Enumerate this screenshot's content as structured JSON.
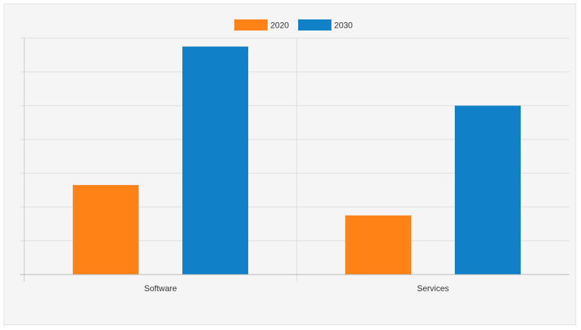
{
  "chart_data": {
    "type": "bar",
    "title": "",
    "xlabel": "",
    "ylabel": "",
    "categories": [
      "Software",
      "Services"
    ],
    "series": [
      {
        "name": "2020",
        "values": [
          26.5,
          17.5
        ],
        "color": "#ff8216"
      },
      {
        "name": "2030",
        "values": [
          67.5,
          50
        ],
        "color": "#1080c9"
      }
    ],
    "ylim": [
      0,
      70
    ],
    "grid": true,
    "legend_position": "top-center",
    "y_tick_labels_shown": false
  }
}
